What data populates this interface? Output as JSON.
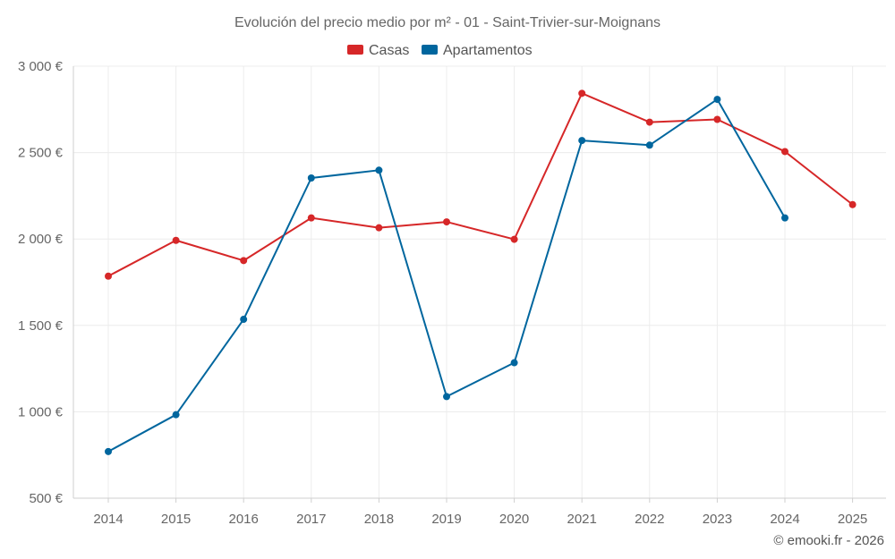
{
  "chart_data": {
    "type": "line",
    "title": "Evolución del precio medio por m² - 01 - Saint-Trivier-sur-Moignans",
    "categories": [
      "2014",
      "2015",
      "2016",
      "2017",
      "2018",
      "2019",
      "2020",
      "2021",
      "2022",
      "2023",
      "2024",
      "2025"
    ],
    "series": [
      {
        "name": "Casas",
        "color": "#d62728",
        "values": [
          1785,
          1992,
          1875,
          2122,
          2065,
          2099,
          1998,
          2843,
          2676,
          2692,
          2506,
          2199
        ]
      },
      {
        "name": "Apartamentos",
        "color": "#00669e",
        "values": [
          770,
          983,
          1535,
          2353,
          2398,
          1088,
          1284,
          2570,
          2543,
          2808,
          2122,
          null
        ]
      }
    ],
    "y_ticks": [
      500,
      1000,
      1500,
      2000,
      2500,
      3000
    ],
    "y_tick_labels": [
      "500 €",
      "1 000 €",
      "1 500 €",
      "2 000 €",
      "2 500 €",
      "3 000 €"
    ],
    "ylim": [
      500,
      3000
    ],
    "xlabel": "",
    "ylabel": "",
    "legend": "top-center",
    "grid": true,
    "credit": "© emooki.fr - 2026"
  }
}
